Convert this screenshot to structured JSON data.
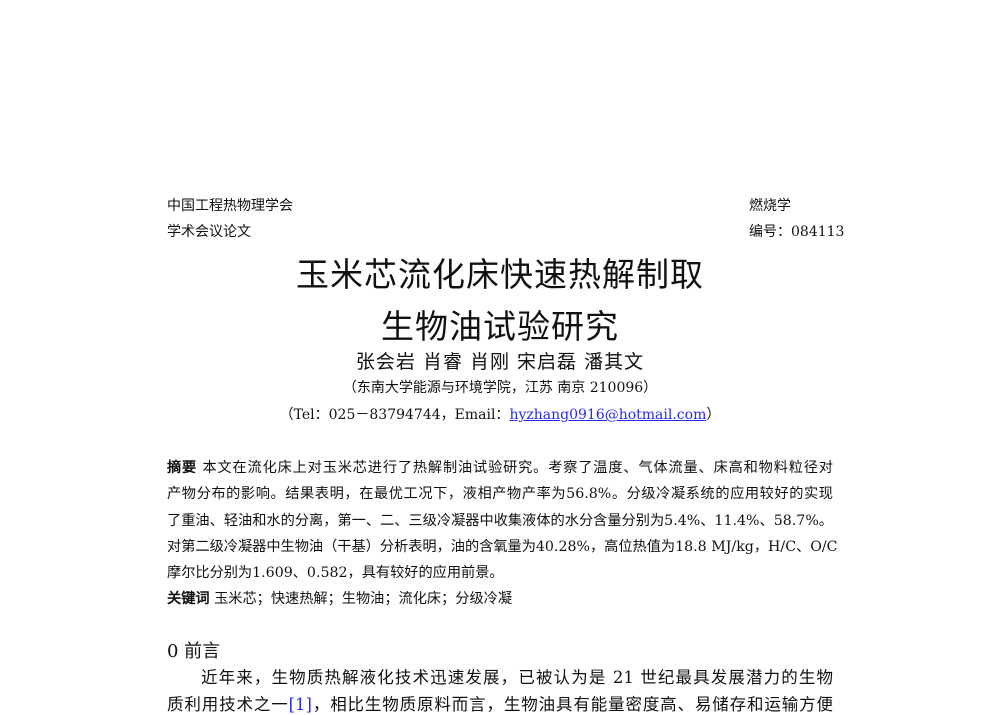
{
  "header": {
    "left_line1": "中国工程热物理学会",
    "left_line2": "学术会议论文",
    "right_line1": "燃烧学",
    "right_line2": "编号：084113"
  },
  "title": {
    "line1": "玉米芯流化床快速热解制取",
    "line2": "生物油试验研究"
  },
  "authors": "张会岩 肖睿 肖刚 宋启磊 潘其文",
  "affiliation": "（东南大学能源与环境学院，江苏 南京 210096）",
  "contact": {
    "prefix": "（Tel：025－83794744，Email：",
    "email": "hyzhang0916@hotmail.com",
    "suffix": "）"
  },
  "abstract": {
    "label": "摘要",
    "lines": [
      "本文在流化床上对玉米芯进行了热解制油试验研究。考察了温度、气体流量、床高和物料粒径对",
      "产物分布的影响。结果表明，在最优工况下，液相产物产率为56.8%。分级冷凝系统的应用较好的实现",
      "了重油、轻油和水的分离，第一、二、三级冷凝器中收集液体的水分含量分别为5.4%、11.4%、58.7%。",
      "对第二级冷凝器中生物油（干基）分析表明，油的含氧量为40.28%，高位热值为18.8 MJ/kg，H/C、O/C",
      "摩尔比分别为1.609、0.582，具有较好的应用前景。"
    ]
  },
  "keywords": {
    "label": "关键词",
    "text": "玉米芯；快速热解；生物油；流化床；分级冷凝"
  },
  "section": {
    "heading": "0  前言",
    "line1": "近年来，生物质热解液化技术迅速发展，已被认为是 21 世纪最具发展潜力的生物",
    "line2_before": "质利用技术之一",
    "line2_cite": "[1]",
    "line2_after": "，相比生物质原料而言，生物油具有能量密度高、易储存和运输方便"
  },
  "colors": {
    "link": "#2a2aee",
    "text": "#111111"
  }
}
